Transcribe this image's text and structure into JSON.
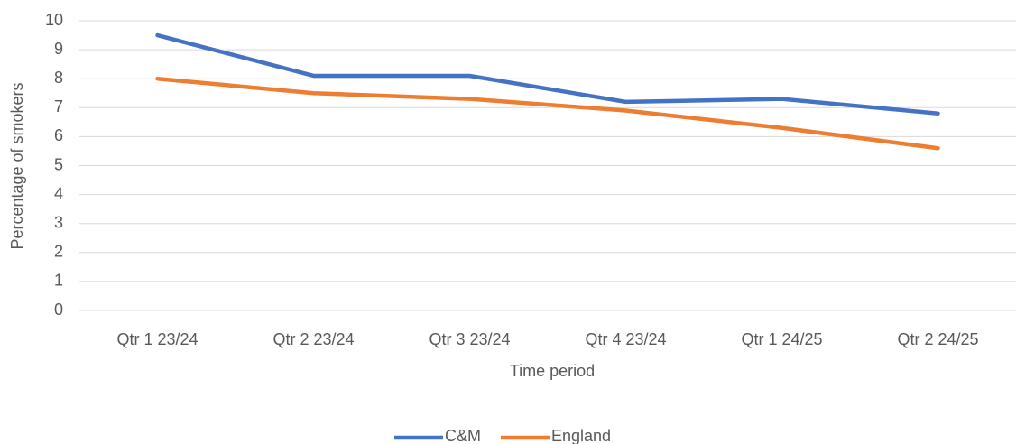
{
  "chart_data": {
    "type": "line",
    "x_label": "Time period",
    "y_label": "Percentage of smokers",
    "categories": [
      "Qtr 1 23/24",
      "Qtr 2 23/24",
      "Qtr 3 23/24",
      "Qtr 4 23/24",
      "Qtr 1 24/25",
      "Qtr 2 24/25"
    ],
    "series": [
      {
        "name": "C&M",
        "color": "#4472c4",
        "values": [
          9.5,
          8.1,
          8.1,
          7.2,
          7.3,
          6.8
        ]
      },
      {
        "name": "England",
        "color": "#ed7d31",
        "values": [
          8.0,
          7.5,
          7.3,
          6.9,
          6.3,
          5.6
        ]
      }
    ],
    "ylim": [
      0,
      10
    ],
    "yticks": [
      0,
      1,
      2,
      3,
      4,
      5,
      6,
      7,
      8,
      9,
      10
    ],
    "grid": true,
    "legend": "bottom"
  }
}
